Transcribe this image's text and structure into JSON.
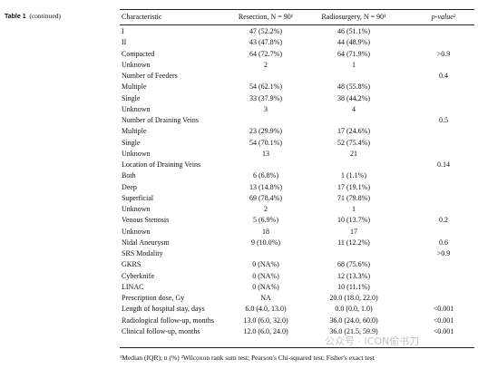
{
  "caption": {
    "label": "Table 1",
    "text": "(continued)"
  },
  "table": {
    "columns": [
      "Characteristic",
      "Resection, N = 90¹",
      "Radiosurgery, N = 90¹",
      "p-value²"
    ],
    "rows": [
      {
        "label": "I",
        "resection": "47 (52.2%)",
        "radiosurgery": "46 (51.1%)"
      },
      {
        "label": "II",
        "resection": "43 (47.8%)",
        "radiosurgery": "44 (48.9%)"
      },
      {
        "label": "Compacted",
        "resection": "64 (72.7%)",
        "radiosurgery": "64 (71.9%)",
        "p": ">0.9"
      },
      {
        "label": "Unknown",
        "resection": "2",
        "radiosurgery": "1"
      },
      {
        "label": "Number of Feeders",
        "p": "0.4"
      },
      {
        "label": "Multiple",
        "resection": "54 (62.1%)",
        "radiosurgery": "48 (55.8%)"
      },
      {
        "label": "Single",
        "resection": "33 (37.9%)",
        "radiosurgery": "38 (44.2%)"
      },
      {
        "label": "Unknown",
        "resection": "3",
        "radiosurgery": "4"
      },
      {
        "label": "Number of Draining Veins",
        "p": "0.5"
      },
      {
        "label": "Multiple",
        "resection": "23 (29.9%)",
        "radiosurgery": "17 (24.6%)"
      },
      {
        "label": "Single",
        "resection": "54 (70.1%)",
        "radiosurgery": "52 (75.4%)"
      },
      {
        "label": "Unknown",
        "resection": "13",
        "radiosurgery": "21"
      },
      {
        "label": "Location of Draining Veins",
        "p": "0.14"
      },
      {
        "label": "Both",
        "resection": "6 (6.8%)",
        "radiosurgery": "1 (1.1%)"
      },
      {
        "label": "Deep",
        "resection": "13 (14.8%)",
        "radiosurgery": "17 (19.1%)"
      },
      {
        "label": "Superficial",
        "resection": "69 (78.4%)",
        "radiosurgery": "71 (79.8%)"
      },
      {
        "label": "Unknown",
        "resection": "2",
        "radiosurgery": "1"
      },
      {
        "label": "Venous Stenosis",
        "resection": "5 (6.9%)",
        "radiosurgery": "10 (13.7%)",
        "p": "0.2"
      },
      {
        "label": "Unknown",
        "resection": "18",
        "radiosurgery": "17"
      },
      {
        "label": "Nidal Aneurysm",
        "resection": "9 (10.0%)",
        "radiosurgery": "11 (12.2%)",
        "p": "0.6"
      },
      {
        "label": "SRS Modality",
        "p": ">0.9"
      },
      {
        "label": "GKRS",
        "resection": "0 (NA%)",
        "radiosurgery": "68 (75.6%)"
      },
      {
        "label": "Cyberknife",
        "resection": "0 (NA%)",
        "radiosurgery": "12 (13.3%)"
      },
      {
        "label": "LINAC",
        "resection": "0 (NA%)",
        "radiosurgery": "10 (11.1%)"
      },
      {
        "label": "Prescription dose, Gy",
        "resection": "NA",
        "radiosurgery": "20.0 (18.0, 22.0)"
      },
      {
        "label": "Length of hospital stay, days",
        "resection": "6.0 (4.0, 13.0)",
        "radiosurgery": "0.0 (0.0, 1.0)",
        "p": "<0.001"
      },
      {
        "label": "Radiological follow-up, months",
        "resection": "13.0 (6.0, 32.0)",
        "radiosurgery": "36.0 (24.0, 60.0)",
        "p": "<0.001"
      },
      {
        "label": "Clinical follow-up, months",
        "resection": "12.0 (6.0, 24.0)",
        "radiosurgery": "36.0 (21.5, 59.9)",
        "p": "<0.001"
      }
    ]
  },
  "footnote": "¹Median (IQR); n (%) ²Wilcoxon rank sum test; Pearson's Chi-squared test; Fisher's exact test",
  "watermark": "公众号 · ICON偷书刀"
}
